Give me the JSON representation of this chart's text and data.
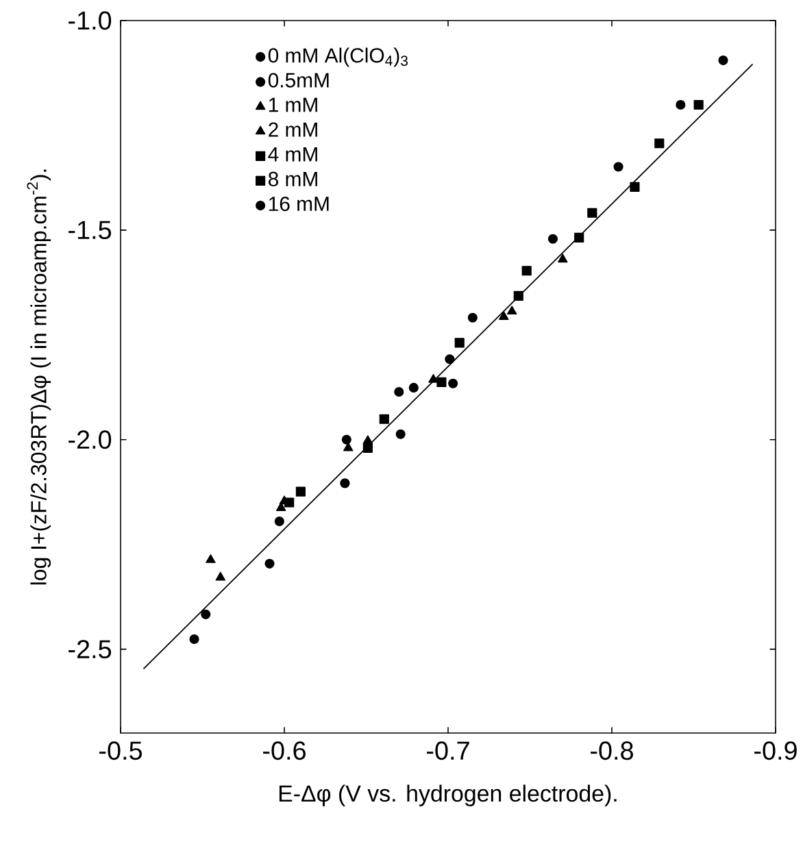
{
  "chart_data": {
    "type": "scatter",
    "xlabel": "E-Δφ (V vs. hydrogen electrode).",
    "ylabel": "log I+(zF/2.303RT)Δφ (I in microamp.cm$^{-2}$).",
    "xlim": [
      -0.5,
      -0.9
    ],
    "ylim": [
      -2.7,
      -1.0
    ],
    "xticks": [
      -0.5,
      -0.6,
      -0.7,
      -0.8,
      -0.9
    ],
    "yticks": [
      {
        "value": -1.0,
        "label": "-1.0"
      },
      {
        "value": -1.5,
        "label": "-1.5"
      },
      {
        "value": -2.0,
        "label": "-2.0"
      },
      {
        "value": -2.5,
        "label": "-2.5"
      }
    ],
    "legend": "top left",
    "grid": false,
    "series": [
      {
        "name": "0 mM Al(ClO$_{4}$)$_{3}$",
        "color": "#000000",
        "marker": "circle",
        "x": [
          -0.545,
          -0.591,
          -0.637,
          -0.671,
          -0.703
        ],
        "values": [
          -2.476,
          -2.296,
          -2.104,
          -1.987,
          -1.866
        ]
      },
      {
        "name": "0.5mM",
        "color": "#000000",
        "marker": "circle",
        "x": [
          -0.552,
          -0.597,
          -0.638,
          -0.679,
          -0.701
        ],
        "values": [
          -2.417,
          -2.195,
          -2.0,
          -1.876,
          -1.808
        ]
      },
      {
        "name": "1 mM",
        "color": "#000000",
        "marker": "triangle",
        "x": [
          -0.561,
          -0.598,
          -0.639,
          -0.691,
          -0.739
        ],
        "values": [
          -2.329,
          -2.163,
          -2.02,
          -1.857,
          -1.694
        ]
      },
      {
        "name": "2 mM",
        "color": "#000000",
        "marker": "triangle",
        "x": [
          -0.555,
          -0.6,
          -0.651,
          -0.734,
          -0.77
        ],
        "values": [
          -2.287,
          -2.147,
          -2.003,
          -1.707,
          -1.57
        ]
      },
      {
        "name": "4 mM",
        "color": "#000000",
        "marker": "square",
        "x": [
          -0.603,
          -0.651,
          -0.696,
          -0.743,
          -0.78,
          -0.814
        ],
        "values": [
          -2.15,
          -2.02,
          -1.863,
          -1.657,
          -1.518,
          -1.397
        ]
      },
      {
        "name": "8 mM",
        "color": "#000000",
        "marker": "square",
        "x": [
          -0.61,
          -0.661,
          -0.707,
          -0.748,
          -0.788,
          -0.829,
          -0.853
        ],
        "values": [
          -2.124,
          -1.951,
          -1.769,
          -1.597,
          -1.459,
          -1.293,
          -1.201
        ]
      },
      {
        "name": "16 mM",
        "color": "#000000",
        "marker": "circle",
        "x": [
          -0.67,
          -0.715,
          -0.764,
          -0.804,
          -0.842,
          -0.868
        ],
        "values": [
          -1.886,
          -1.709,
          -1.521,
          -1.349,
          -1.201,
          -1.095
        ]
      },
      {
        "type": "line",
        "color": "#000000",
        "marker": "none",
        "line_style": "solid",
        "x": [
          -0.514,
          -0.886
        ],
        "values": [
          -2.547,
          -1.104
        ]
      }
    ]
  }
}
